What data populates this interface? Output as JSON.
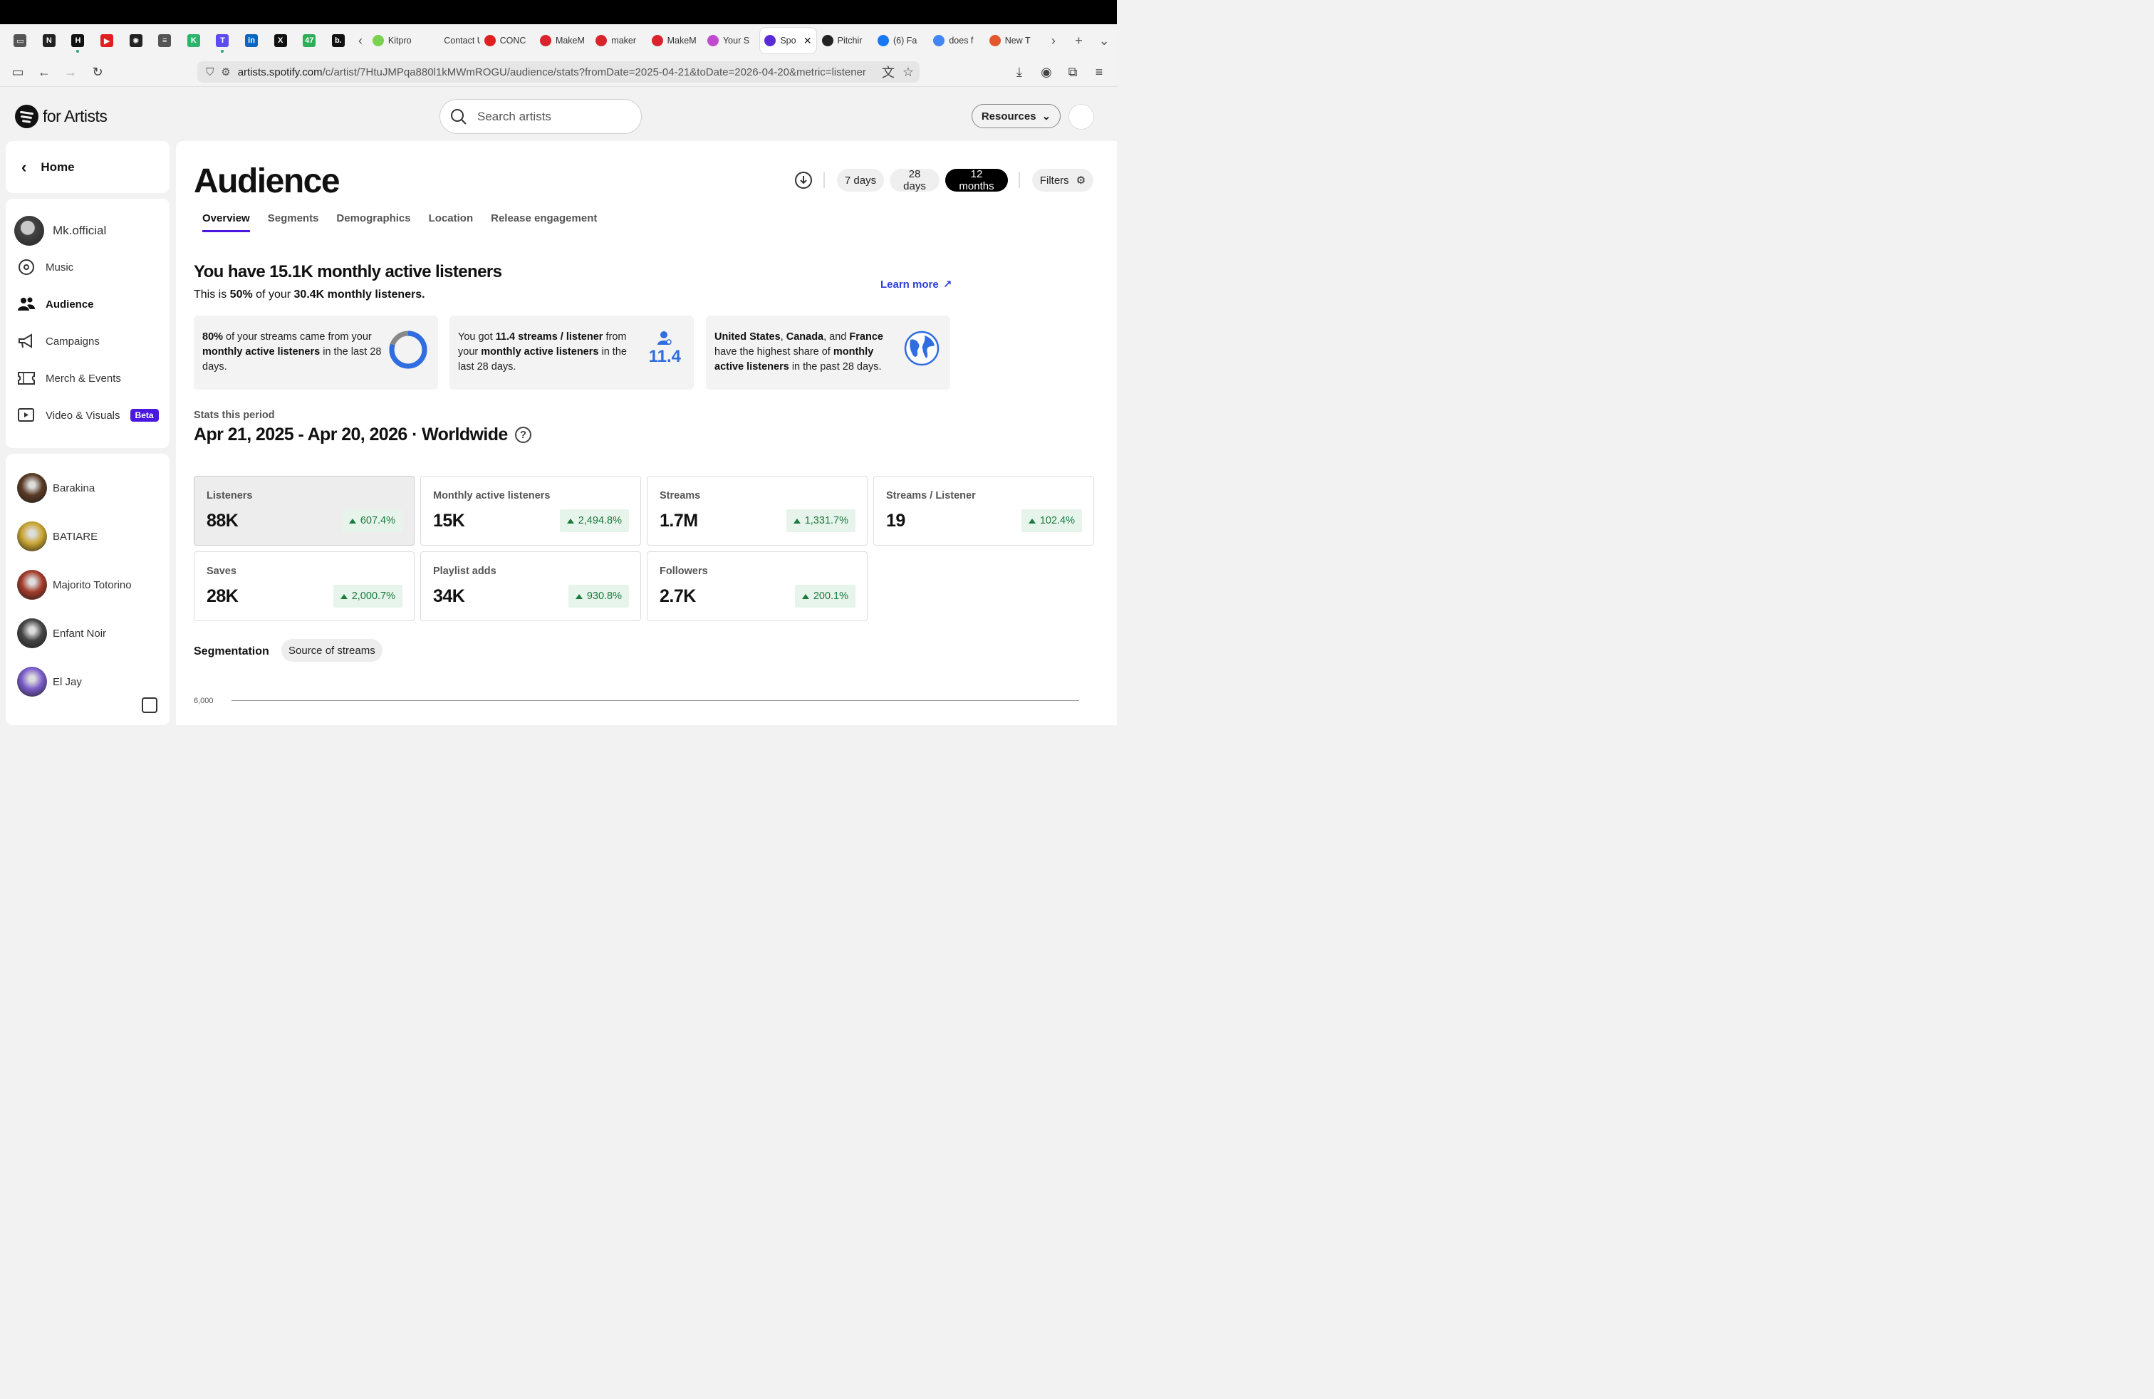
{
  "browser": {
    "pinned_tabs": [
      {
        "icon": "archive-icon",
        "glyph": "▭",
        "color": "#555555"
      },
      {
        "icon": "notion-icon",
        "glyph": "N",
        "color": "#222222"
      },
      {
        "icon": "h-app-icon",
        "glyph": "H",
        "color": "#111111"
      },
      {
        "icon": "youtube-icon",
        "glyph": "▶",
        "color": "#e02020"
      },
      {
        "icon": "openai-icon",
        "glyph": "✺",
        "color": "#222222"
      },
      {
        "icon": "doc-icon",
        "glyph": "≡",
        "color": "#555555"
      },
      {
        "icon": "k-app-icon",
        "glyph": "K",
        "color": "#2db36b"
      },
      {
        "icon": "t-app-icon",
        "glyph": "T",
        "color": "#5b4bf0"
      },
      {
        "icon": "linkedin-icon",
        "glyph": "in",
        "color": "#0a66c2"
      },
      {
        "icon": "x-icon",
        "glyph": "X",
        "color": "#111111"
      },
      {
        "icon": "badge-47-icon",
        "glyph": "47",
        "color": "#2fae5a"
      },
      {
        "icon": "booking-icon",
        "glyph": "b.",
        "color": "#111111"
      }
    ],
    "tabs": [
      {
        "label": "Kitpro",
        "icon": "kitpro-icon",
        "color": "#7ad14d"
      },
      {
        "label": "Contact U",
        "icon": "blank-icon",
        "color": "#f3f3f3"
      },
      {
        "label": "CONC",
        "icon": "youtube-icon",
        "color": "#e02020"
      },
      {
        "label": "MakeM",
        "icon": "makem-icon",
        "color": "#d9232d"
      },
      {
        "label": "maker",
        "icon": "makem-icon",
        "color": "#d9232d"
      },
      {
        "label": "MakeM",
        "icon": "makem-icon",
        "color": "#d9232d"
      },
      {
        "label": "Your S",
        "icon": "y-icon",
        "color": "#c04ad0"
      },
      {
        "label": "Spo",
        "icon": "spotify-icon",
        "color": "#5b2bd8",
        "active": true
      },
      {
        "label": "Pitchir",
        "icon": "spotify-icon",
        "color": "#222222"
      },
      {
        "label": "(6) Fa",
        "icon": "facebook-icon",
        "color": "#1877f2"
      },
      {
        "label": "does f",
        "icon": "google-icon",
        "color": "#4285f4"
      },
      {
        "label": "New T",
        "icon": "firefox-icon",
        "color": "#e4572e"
      }
    ],
    "url_domain": "artists.spotify.com",
    "url_path": "/c/artist/7HtuJMPqa880l1kMWmROGU/audience/stats?fromDate=2025-04-21&toDate=2026-04-20&metric=listener"
  },
  "header": {
    "logo_text": "for Artists",
    "search_placeholder": "Search artists",
    "resources_label": "Resources"
  },
  "sidebar": {
    "home_label": "Home",
    "profile_name": "Mk.official",
    "nav": [
      {
        "label": "Music",
        "icon": "music-disc-icon"
      },
      {
        "label": "Audience",
        "icon": "audience-icon",
        "active": true
      },
      {
        "label": "Campaigns",
        "icon": "megaphone-icon"
      },
      {
        "label": "Merch & Events",
        "icon": "ticket-icon"
      },
      {
        "label": "Video & Visuals",
        "icon": "video-icon",
        "badge": "Beta"
      }
    ],
    "artists": [
      {
        "name": "Barakina",
        "color": "#5a3a24"
      },
      {
        "name": "BATIARE",
        "color": "#c9a431"
      },
      {
        "name": "Majorito Totorino",
        "color": "#a23b2a"
      },
      {
        "name": "Enfant Noir",
        "color": "#444444"
      },
      {
        "name": "El Jay",
        "color": "#7a5cc9"
      }
    ]
  },
  "main": {
    "title": "Audience",
    "ranges": [
      "7 days",
      "28 days",
      "12 months"
    ],
    "selected_range": "12 months",
    "filters_label": "Filters",
    "tabs": [
      "Overview",
      "Segments",
      "Demographics",
      "Location",
      "Release engagement"
    ],
    "active_tab": "Overview",
    "headline": "You have 15.1K monthly active listeners",
    "subline": {
      "pre": "This is ",
      "pct": "50%",
      "mid": " of your ",
      "total": "30.4K monthly listeners."
    },
    "learn_more": "Learn more",
    "insights": [
      {
        "b1": "80%",
        "t1": " of your streams came from your ",
        "b2": "monthly active listeners",
        "t2": " in the last 28 days.",
        "donut_fraction": 0.8
      },
      {
        "t0": "You got ",
        "b1": "11.4 streams / listener",
        "t1": " from your ",
        "b2": "monthly active listeners",
        "t2": " in the last 28 days.",
        "value": "11.4"
      },
      {
        "b1": "United States",
        "t1": ", ",
        "b2": "Canada",
        "t2": ", and ",
        "b3": "France",
        "t3": " have the highest share of ",
        "b4": "monthly active listeners",
        "t4": " in the past 28 days."
      }
    ],
    "period_label": "Stats this period",
    "period": "Apr 21, 2025 - Apr 20, 2026 · Worldwide",
    "stats": [
      {
        "label": "Listeners",
        "value": "88K",
        "change": "607.4%"
      },
      {
        "label": "Monthly active listeners",
        "value": "15K",
        "change": "2,494.8%"
      },
      {
        "label": "Streams",
        "value": "1.7M",
        "change": "1,331.7%"
      },
      {
        "label": "Streams / Listener",
        "value": "19",
        "change": "102.4%"
      },
      {
        "label": "Saves",
        "value": "28K",
        "change": "2,000.7%"
      },
      {
        "label": "Playlist adds",
        "value": "34K",
        "change": "930.8%"
      },
      {
        "label": "Followers",
        "value": "2.7K",
        "change": "200.1%"
      }
    ],
    "segmentation_label": "Segmentation",
    "segmentation_pill": "Source of streams",
    "y_tick": "6,000"
  }
}
